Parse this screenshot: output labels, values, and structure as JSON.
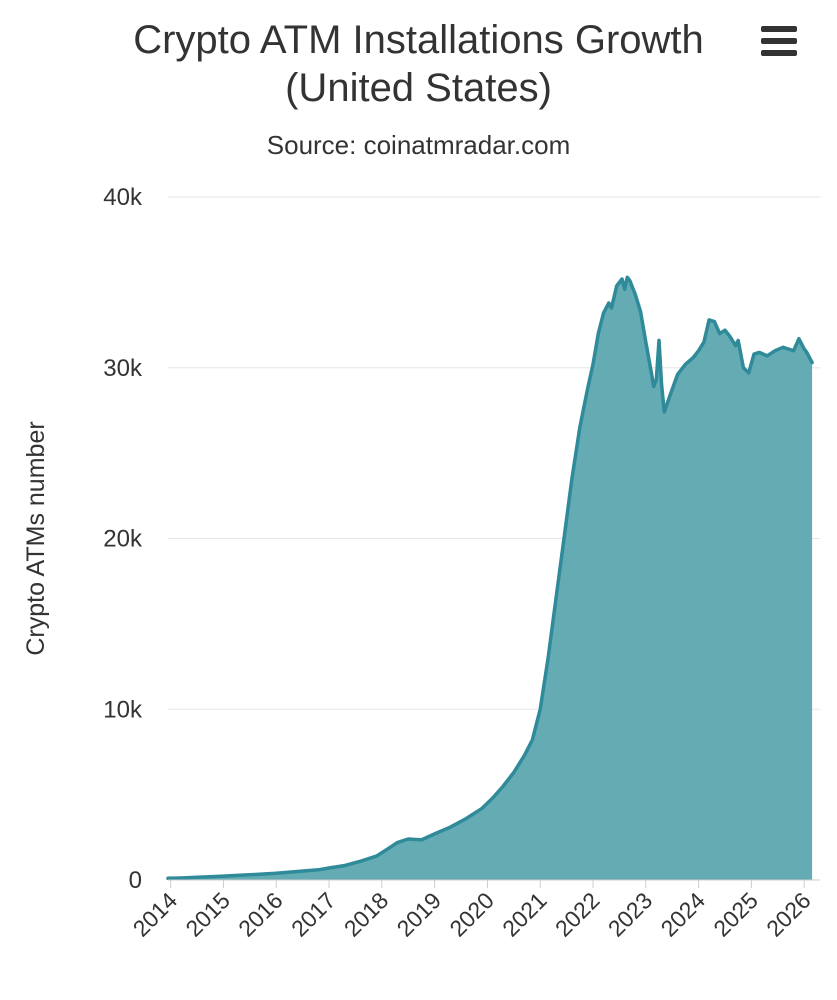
{
  "menu": {
    "icon": "hamburger-menu-icon"
  },
  "chart_data": {
    "type": "area",
    "title_line1": "Crypto ATM Installations Growth",
    "title_line2": "(United States)",
    "subtitle": "Source: coinatmradar.com",
    "xlabel": "",
    "ylabel": "Crypto ATMs number",
    "xlim": [
      2013.95,
      2026.3
    ],
    "ylim": [
      0,
      40000
    ],
    "grid": true,
    "legend": "none",
    "yticks": [
      {
        "value": 0,
        "label": "0"
      },
      {
        "value": 10000,
        "label": "10k"
      },
      {
        "value": 20000,
        "label": "20k"
      },
      {
        "value": 30000,
        "label": "30k"
      },
      {
        "value": 40000,
        "label": "40k"
      }
    ],
    "xticks": [
      {
        "value": 2014,
        "label": "2014"
      },
      {
        "value": 2015,
        "label": "2015"
      },
      {
        "value": 2016,
        "label": "2016"
      },
      {
        "value": 2017,
        "label": "2017"
      },
      {
        "value": 2018,
        "label": "2018"
      },
      {
        "value": 2019,
        "label": "2019"
      },
      {
        "value": 2020,
        "label": "2020"
      },
      {
        "value": 2021,
        "label": "2021"
      },
      {
        "value": 2022,
        "label": "2022"
      },
      {
        "value": 2023,
        "label": "2023"
      },
      {
        "value": 2024,
        "label": "2024"
      },
      {
        "value": 2025,
        "label": "2025"
      },
      {
        "value": 2026,
        "label": "2026"
      }
    ],
    "colors": {
      "fill": "#65abb4",
      "fill_opacity": 1,
      "line": "#2f8a99",
      "grid": "#e6e6e6",
      "axis": "#cccccc",
      "text": "#333333"
    },
    "series": [
      {
        "name": "Crypto ATMs number",
        "points": [
          [
            2013.95,
            100
          ],
          [
            2014.2,
            120
          ],
          [
            2014.5,
            160
          ],
          [
            2014.8,
            200
          ],
          [
            2015.0,
            230
          ],
          [
            2015.3,
            280
          ],
          [
            2015.6,
            320
          ],
          [
            2016.0,
            400
          ],
          [
            2016.4,
            500
          ],
          [
            2016.8,
            600
          ],
          [
            2017.0,
            700
          ],
          [
            2017.3,
            850
          ],
          [
            2017.6,
            1100
          ],
          [
            2017.9,
            1400
          ],
          [
            2018.1,
            1800
          ],
          [
            2018.3,
            2200
          ],
          [
            2018.5,
            2400
          ],
          [
            2018.75,
            2350
          ],
          [
            2019.0,
            2700
          ],
          [
            2019.3,
            3100
          ],
          [
            2019.6,
            3600
          ],
          [
            2019.9,
            4200
          ],
          [
            2020.1,
            4800
          ],
          [
            2020.3,
            5500
          ],
          [
            2020.5,
            6300
          ],
          [
            2020.7,
            7300
          ],
          [
            2020.85,
            8200
          ],
          [
            2021.0,
            10000
          ],
          [
            2021.15,
            13000
          ],
          [
            2021.3,
            16500
          ],
          [
            2021.45,
            20000
          ],
          [
            2021.6,
            23500
          ],
          [
            2021.75,
            26500
          ],
          [
            2021.9,
            28800
          ],
          [
            2022.0,
            30200
          ],
          [
            2022.1,
            32000
          ],
          [
            2022.2,
            33200
          ],
          [
            2022.3,
            33800
          ],
          [
            2022.35,
            33500
          ],
          [
            2022.45,
            34800
          ],
          [
            2022.55,
            35200
          ],
          [
            2022.6,
            34600
          ],
          [
            2022.65,
            35300
          ],
          [
            2022.7,
            35100
          ],
          [
            2022.8,
            34300
          ],
          [
            2022.9,
            33300
          ],
          [
            2023.0,
            31500
          ],
          [
            2023.1,
            29800
          ],
          [
            2023.15,
            28900
          ],
          [
            2023.2,
            29300
          ],
          [
            2023.25,
            31600
          ],
          [
            2023.3,
            29000
          ],
          [
            2023.35,
            27400
          ],
          [
            2023.45,
            28300
          ],
          [
            2023.6,
            29600
          ],
          [
            2023.75,
            30200
          ],
          [
            2023.9,
            30600
          ],
          [
            2024.0,
            31000
          ],
          [
            2024.1,
            31500
          ],
          [
            2024.2,
            32800
          ],
          [
            2024.3,
            32700
          ],
          [
            2024.4,
            32000
          ],
          [
            2024.5,
            32200
          ],
          [
            2024.6,
            31800
          ],
          [
            2024.7,
            31300
          ],
          [
            2024.75,
            31600
          ],
          [
            2024.85,
            30000
          ],
          [
            2024.95,
            29700
          ],
          [
            2025.05,
            30800
          ],
          [
            2025.15,
            30900
          ],
          [
            2025.3,
            30700
          ],
          [
            2025.45,
            31000
          ],
          [
            2025.6,
            31200
          ],
          [
            2025.7,
            31100
          ],
          [
            2025.8,
            31000
          ],
          [
            2025.9,
            31700
          ],
          [
            2026.0,
            31100
          ],
          [
            2026.05,
            30900
          ],
          [
            2026.15,
            30300
          ]
        ]
      }
    ]
  }
}
